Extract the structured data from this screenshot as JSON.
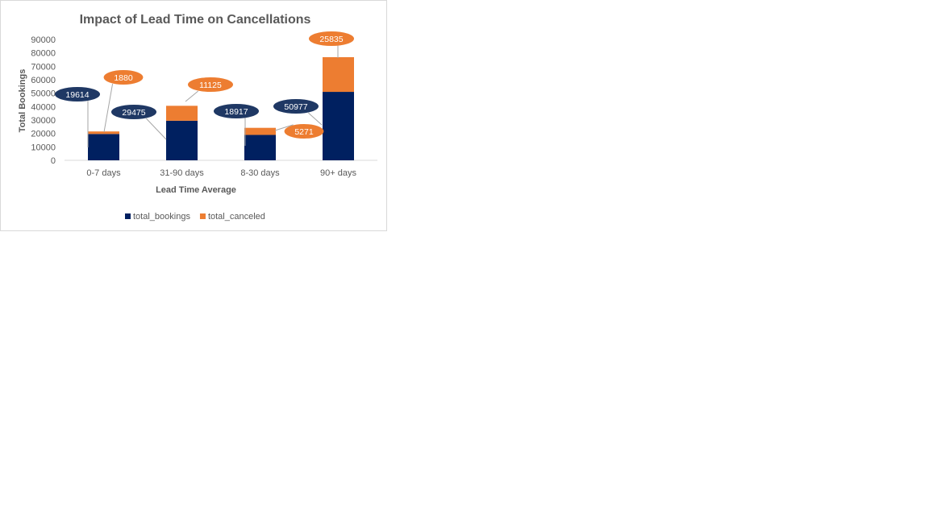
{
  "chart_data": {
    "type": "bar",
    "stacked": true,
    "title": "Impact of Lead Time on Cancellations",
    "xlabel": "Lead Time Average",
    "ylabel": "Total Bookings",
    "categories": [
      "0-7 days",
      "31-90 days",
      "8-30 days",
      "90+ days"
    ],
    "series": [
      {
        "name": "total_bookings",
        "values": [
          19614,
          29475,
          18917,
          50977
        ],
        "color": "#002060"
      },
      {
        "name": "total_canceled",
        "values": [
          1880,
          11125,
          5271,
          25835
        ],
        "color": "#ed7d31"
      }
    ],
    "ylim": [
      0,
      90000
    ],
    "yticks": [
      "0",
      "10000",
      "20000",
      "30000",
      "40000",
      "50000",
      "60000",
      "70000",
      "80000",
      "90000"
    ],
    "grid": false,
    "legend_position": "bottom",
    "data_labels": {
      "total_bookings": [
        "19614",
        "29475",
        "18917",
        "50977"
      ],
      "total_canceled": [
        "1880",
        "11125",
        "5271",
        "25835"
      ]
    }
  }
}
